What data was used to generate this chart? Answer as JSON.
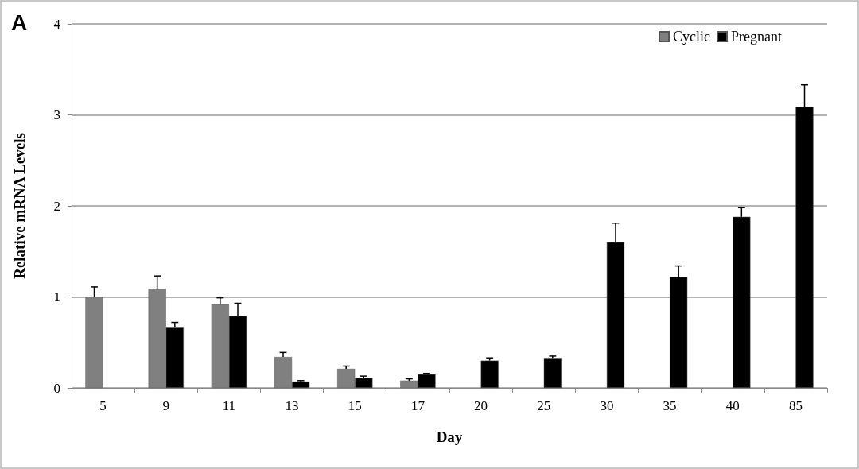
{
  "chart_data": {
    "type": "bar",
    "xlabel": "Day",
    "ylabel": "Relative mRNA Levels",
    "annotations": [
      "A"
    ],
    "categories": [
      "5",
      "9",
      "11",
      "13",
      "15",
      "17",
      "20",
      "25",
      "30",
      "35",
      "40",
      "85"
    ],
    "series": [
      {
        "name": "Cyclic",
        "color": "#808080",
        "values": [
          1.0,
          1.09,
          0.92,
          0.34,
          0.21,
          0.08,
          null,
          null,
          null,
          null,
          null,
          null
        ],
        "errors": [
          [
            1.0,
            1.11
          ],
          [
            1.09,
            1.23
          ],
          [
            0.92,
            0.99
          ],
          [
            0.34,
            0.39
          ],
          [
            0.21,
            0.24
          ],
          [
            0.08,
            0.1
          ],
          null,
          null,
          null,
          null,
          null,
          null
        ]
      },
      {
        "name": "Pregnant",
        "color": "#000000",
        "values": [
          null,
          0.67,
          0.79,
          0.07,
          0.11,
          0.15,
          0.3,
          0.33,
          1.6,
          1.22,
          1.88,
          3.09
        ],
        "errors": [
          null,
          [
            0.67,
            0.72
          ],
          [
            0.79,
            0.93
          ],
          [
            0.07,
            0.08
          ],
          [
            0.11,
            0.13
          ],
          [
            0.15,
            0.16
          ],
          [
            0.3,
            0.33
          ],
          [
            0.33,
            0.35
          ],
          [
            1.6,
            1.81
          ],
          [
            1.22,
            1.34
          ],
          [
            1.88,
            1.98
          ],
          [
            3.09,
            3.33
          ]
        ]
      }
    ],
    "ylim": [
      0,
      4
    ],
    "yticks": [
      0,
      1,
      2,
      3,
      4
    ],
    "grid": "y",
    "legend": "top right"
  }
}
